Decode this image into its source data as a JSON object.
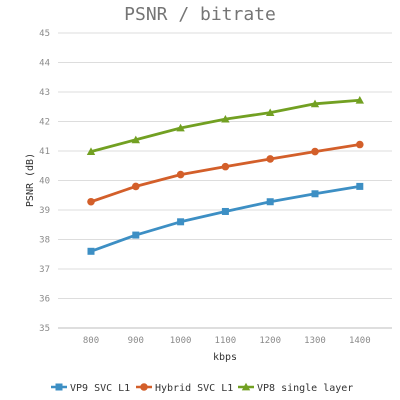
{
  "chart_data": {
    "type": "line",
    "title": "PSNR / bitrate",
    "xlabel": "kbps",
    "ylabel": "PSNR (dB)",
    "categories": [
      "800",
      "900",
      "1000",
      "1100",
      "1200",
      "1300",
      "1400"
    ],
    "ylim": [
      35,
      45
    ],
    "yticks": [
      "35",
      "36",
      "37",
      "38",
      "39",
      "40",
      "41",
      "42",
      "43",
      "44",
      "45"
    ],
    "grid": true,
    "legend_position": "bottom",
    "series": [
      {
        "name": "VP9 SVC L1",
        "color": "#3d8fc4",
        "marker": "square",
        "values": [
          37.6,
          38.15,
          38.6,
          38.95,
          39.28,
          39.55,
          39.8
        ]
      },
      {
        "name": "Hybrid SVC L1",
        "color": "#d35f2a",
        "marker": "circle",
        "values": [
          39.28,
          39.8,
          40.2,
          40.47,
          40.73,
          40.98,
          41.22
        ]
      },
      {
        "name": "VP8 single layer",
        "color": "#72a022",
        "marker": "triangle",
        "values": [
          40.98,
          41.38,
          41.78,
          42.08,
          42.3,
          42.6,
          42.72
        ]
      }
    ]
  }
}
